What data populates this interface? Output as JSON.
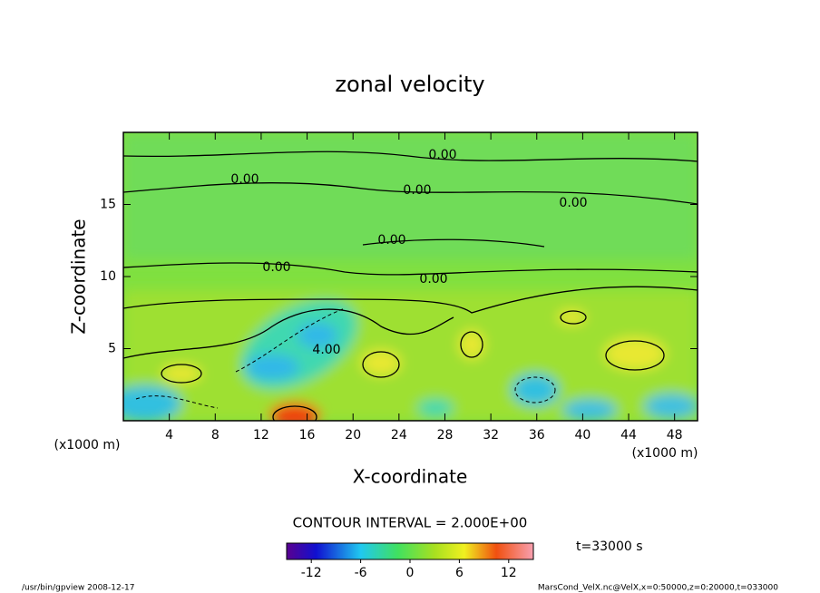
{
  "chart_data": {
    "type": "contour",
    "title": "zonal velocity",
    "x_label": "X-coordinate",
    "y_label": "Z-coordinate",
    "x_unit": "(x1000 m)",
    "y_unit": "(x1000 m)",
    "xlim": [
      0,
      50
    ],
    "xticks": [
      4,
      8,
      12,
      16,
      20,
      24,
      28,
      32,
      36,
      40,
      44,
      48
    ],
    "ylim": [
      0,
      20
    ],
    "yticks": [
      5,
      10,
      15
    ],
    "contour_interval_label": "CONTOUR INTERVAL = 2.000E+00",
    "contour_labels": [
      "0.00",
      "0.00",
      "0.00",
      "0.00",
      "0.00",
      "0.00",
      "0.00",
      "4.00"
    ],
    "colorbar": {
      "clim": [
        -15,
        15
      ],
      "ticks": [
        -12,
        -6,
        0,
        6,
        12
      ]
    },
    "time_label": "t=33000 s",
    "footer_left": "/usr/bin/gpview  2008-12-17",
    "footer_right": "MarsCond_VelX.nc@VelX,x=0:50000,z=0:20000,t=033000"
  }
}
